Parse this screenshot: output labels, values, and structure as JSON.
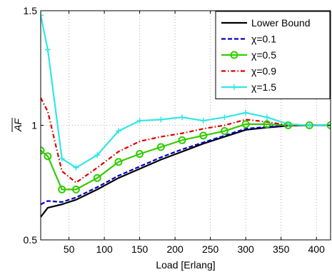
{
  "chart_data": {
    "type": "line",
    "xlabel": "Load [Erlang]",
    "ylabel": "AF",
    "xlim": [
      10,
      420
    ],
    "ylim": [
      0.5,
      1.5
    ],
    "xticks": [
      50,
      100,
      150,
      200,
      250,
      300,
      350,
      400
    ],
    "yticks": [
      0.5,
      1,
      1.5
    ],
    "ytick_labels": [
      "0.5",
      "1",
      "1.5"
    ],
    "grid": true,
    "grid_style": "dotted",
    "legend_position": "top-right",
    "series": [
      {
        "name": "Lower Bound",
        "color": "#000000",
        "line_style": "solid",
        "marker": "none",
        "x": [
          10,
          20,
          40,
          60,
          90,
          120,
          150,
          180,
          210,
          240,
          270,
          300,
          330,
          360,
          390,
          420
        ],
        "y": [
          0.6,
          0.64,
          0.655,
          0.675,
          0.72,
          0.77,
          0.81,
          0.85,
          0.885,
          0.92,
          0.95,
          0.98,
          0.99,
          0.998,
          1.0,
          1.0
        ]
      },
      {
        "name": "χ=0.1",
        "color": "#0000cc",
        "line_style": "dashed",
        "marker": "none",
        "x": [
          10,
          20,
          40,
          60,
          90,
          120,
          150,
          180,
          210,
          240,
          270,
          300,
          330,
          360,
          390,
          420
        ],
        "y": [
          0.655,
          0.67,
          0.665,
          0.685,
          0.73,
          0.78,
          0.82,
          0.86,
          0.895,
          0.925,
          0.955,
          0.985,
          0.993,
          1.0,
          1.0,
          1.0
        ]
      },
      {
        "name": "χ=0.5",
        "color": "#33cc00",
        "line_style": "solid",
        "marker": "circle",
        "x": [
          10,
          20,
          40,
          60,
          90,
          120,
          150,
          180,
          210,
          240,
          270,
          300,
          330,
          360,
          390,
          420
        ],
        "y": [
          0.89,
          0.865,
          0.72,
          0.72,
          0.77,
          0.84,
          0.875,
          0.905,
          0.935,
          0.955,
          0.975,
          1.005,
          1.005,
          1.0,
          1.0,
          1.0
        ]
      },
      {
        "name": "χ=0.9",
        "color": "#dd0000",
        "line_style": "dashdot",
        "marker": "none",
        "x": [
          10,
          20,
          40,
          60,
          90,
          120,
          150,
          180,
          210,
          240,
          270,
          300,
          330,
          360,
          390,
          420
        ],
        "y": [
          1.12,
          1.06,
          0.8,
          0.75,
          0.815,
          0.885,
          0.93,
          0.95,
          0.965,
          0.985,
          1.0,
          1.025,
          1.015,
          1.0,
          1.0,
          1.0
        ]
      },
      {
        "name": "χ=1.5",
        "color": "#33e6e6",
        "line_style": "solid",
        "marker": "plus",
        "x": [
          10,
          20,
          40,
          60,
          90,
          120,
          150,
          180,
          210,
          240,
          270,
          300,
          330,
          360,
          390,
          420
        ],
        "y": [
          1.48,
          1.33,
          0.855,
          0.815,
          0.87,
          0.975,
          1.02,
          1.025,
          1.035,
          1.02,
          1.035,
          1.055,
          1.035,
          1.005,
          1.0,
          1.0
        ]
      }
    ]
  }
}
